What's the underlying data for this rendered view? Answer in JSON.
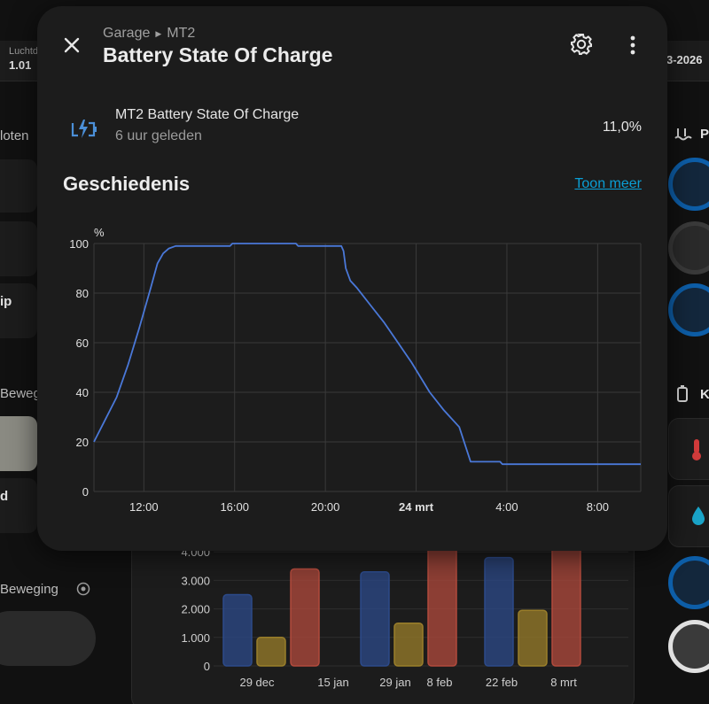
{
  "background": {
    "topbar": {
      "label": "Luchtd",
      "value": "1.01",
      "date": "3-2026"
    },
    "left_texts": [
      "loten",
      "ip",
      "Beweg",
      "d",
      "Beweging"
    ],
    "right_titles": [
      "P",
      "K"
    ],
    "bar_chart": {
      "type": "bar",
      "y_ticks": [
        "0",
        "1.000",
        "2.000",
        "3.000",
        "4.000"
      ],
      "x_labels": [
        "29 dec",
        "15 jan",
        "29 jan",
        "8 feb",
        "22 feb",
        "8 mrt"
      ],
      "groups": [
        {
          "label": "29 dec",
          "values": [
            2500,
            1000,
            3400
          ]
        },
        {
          "label": "29 jan",
          "values": [
            3300,
            1500,
            4900
          ]
        },
        {
          "label": "22 feb",
          "values": [
            3800,
            1950,
            5200
          ]
        }
      ],
      "colors": [
        "#2c4a8a",
        "#9a7e2a",
        "#b24a3c"
      ],
      "ylim": [
        0,
        5000
      ]
    }
  },
  "dialog": {
    "breadcrumb": [
      "Garage",
      "MT2"
    ],
    "title": "Battery State Of Charge",
    "entity": {
      "name": "MT2 Battery State Of Charge",
      "last_changed": "6 uur geleden",
      "state": "11,0%",
      "icon": "battery-charging-icon"
    },
    "history": {
      "title": "Geschiedenis",
      "show_more": "Toon meer"
    },
    "icons": {
      "close": "close-icon",
      "settings": "gear-icon",
      "menu": "dots-vertical-icon"
    }
  },
  "chart_data": {
    "type": "line",
    "title": "",
    "ylabel": "%",
    "xlabel": "",
    "ylim": [
      0,
      100
    ],
    "y_ticks": [
      0,
      20,
      40,
      60,
      80,
      100
    ],
    "x_ticks": [
      "12:00",
      "16:00",
      "20:00",
      "24 mrt",
      "4:00",
      "8:00"
    ],
    "x_tick_hours": [
      12,
      16,
      20,
      24,
      28,
      32
    ],
    "xlim_hours": [
      9.8,
      33.9
    ],
    "line_color": "#4a78d8",
    "series": [
      {
        "x_hours": [
          9.8,
          10.3,
          10.8,
          11.3,
          11.8,
          12.3,
          12.6,
          12.85,
          13.1,
          13.4,
          15.8,
          15.9,
          18.7,
          18.8,
          20.7,
          20.8,
          20.9,
          21.1,
          21.4,
          22.0,
          22.6,
          23.2,
          23.8,
          24.6,
          25.2,
          25.9,
          26.4,
          27.7,
          27.8,
          33.9
        ],
        "values": [
          20,
          29,
          38,
          51,
          66,
          82,
          92,
          96,
          98,
          99,
          99,
          100,
          100,
          99,
          99,
          97,
          90,
          85,
          82,
          75,
          68,
          60,
          52,
          40,
          33,
          26,
          12,
          12,
          11,
          11
        ]
      }
    ]
  }
}
